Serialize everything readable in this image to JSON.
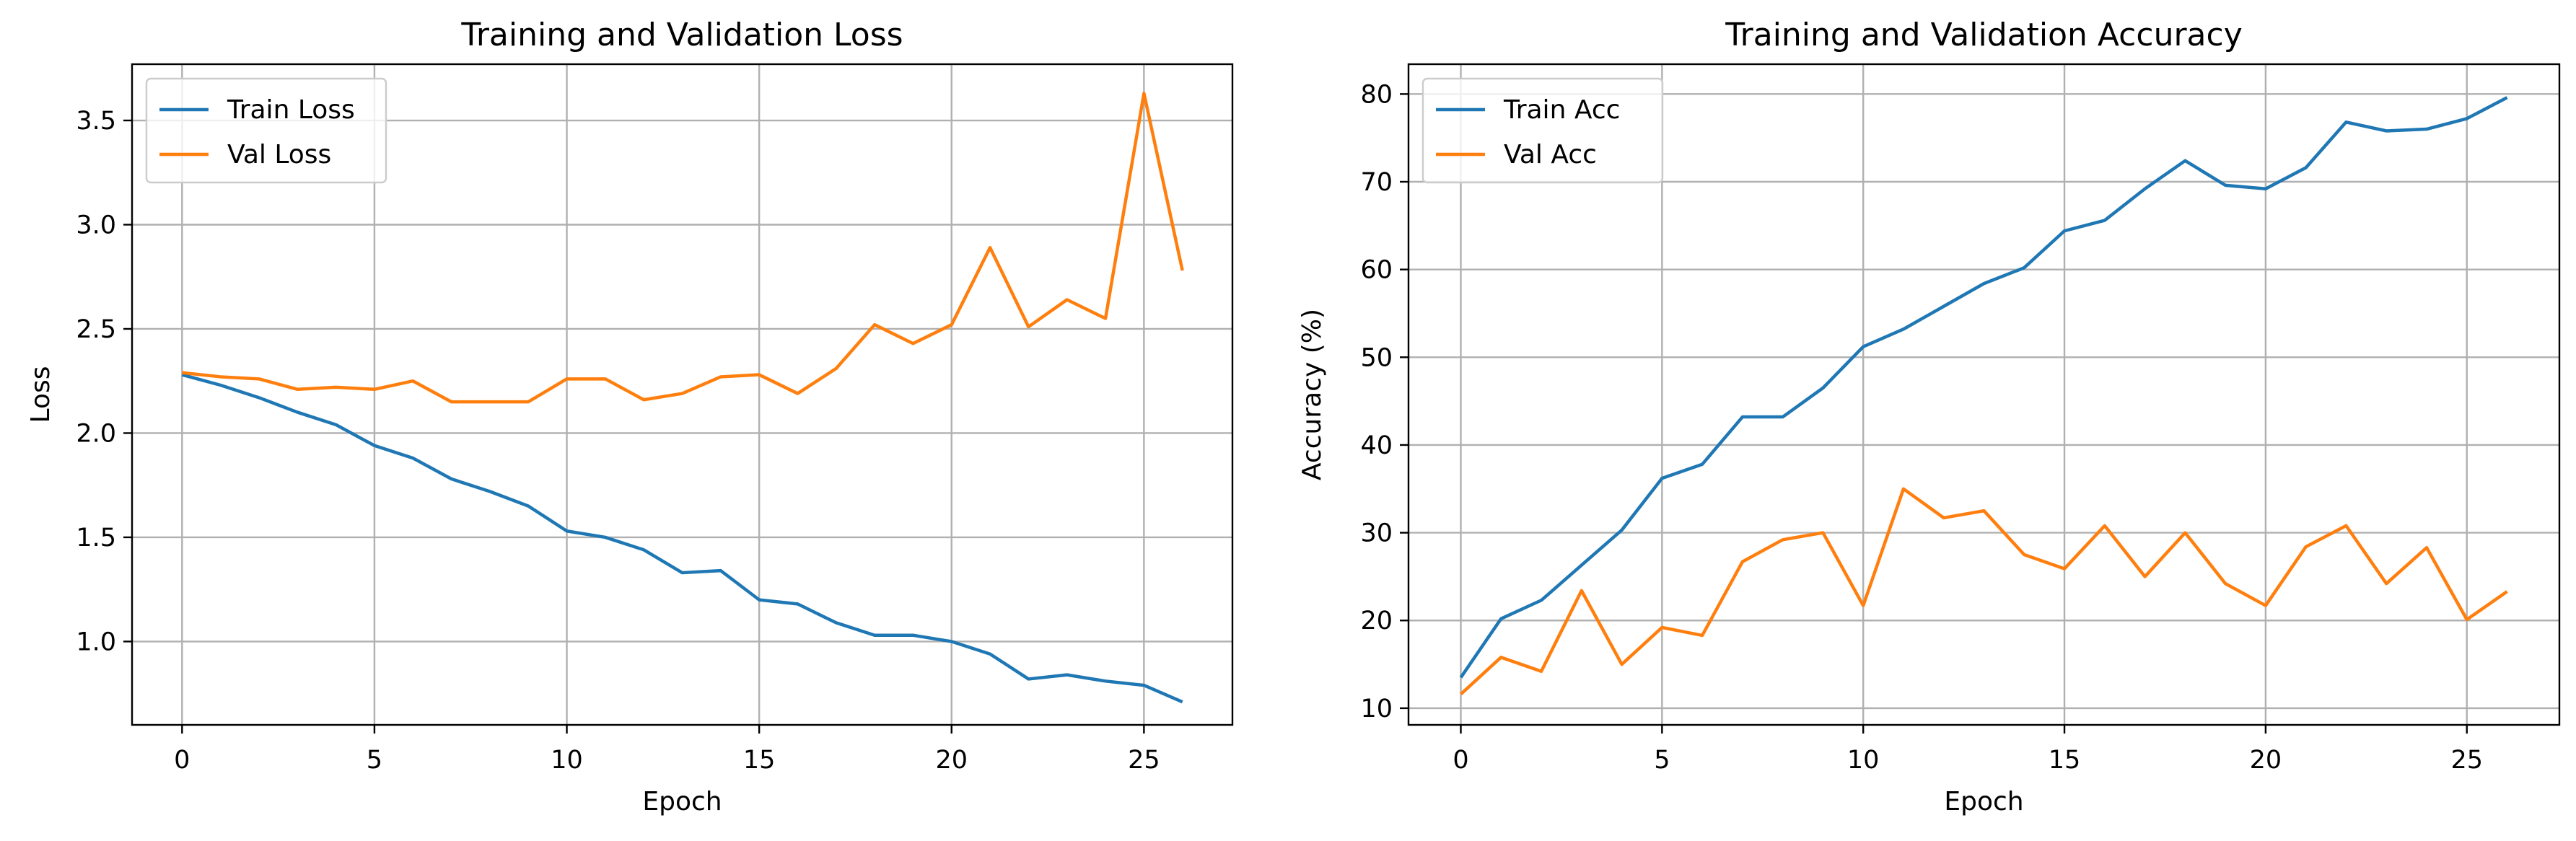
{
  "chart_data": [
    {
      "type": "line",
      "title": "Training and Validation Loss",
      "xlabel": "Epoch",
      "ylabel": "Loss",
      "xlim": [
        -1.3,
        27.3
      ],
      "ylim": [
        0.6,
        3.77
      ],
      "xticks": [
        0,
        5,
        10,
        15,
        20,
        25
      ],
      "yticks": [
        1.0,
        1.5,
        2.0,
        2.5,
        3.0,
        3.5
      ],
      "grid": true,
      "legend": "upper left",
      "x": [
        0,
        1,
        2,
        3,
        4,
        5,
        6,
        7,
        8,
        9,
        10,
        11,
        12,
        13,
        14,
        15,
        16,
        17,
        18,
        19,
        20,
        21,
        22,
        23,
        24,
        25,
        26
      ],
      "series": [
        {
          "name": "Train Loss",
          "color": "#1f77b4",
          "values": [
            2.28,
            2.23,
            2.17,
            2.1,
            2.04,
            1.94,
            1.88,
            1.78,
            1.72,
            1.65,
            1.53,
            1.5,
            1.44,
            1.33,
            1.34,
            1.2,
            1.18,
            1.09,
            1.03,
            1.03,
            1.0,
            0.94,
            0.82,
            0.84,
            0.81,
            0.79,
            0.71
          ]
        },
        {
          "name": "Val Loss",
          "color": "#ff7f0e",
          "values": [
            2.29,
            2.27,
            2.26,
            2.21,
            2.22,
            2.21,
            2.25,
            2.15,
            2.15,
            2.15,
            2.26,
            2.26,
            2.16,
            2.19,
            2.27,
            2.28,
            2.19,
            2.31,
            2.52,
            2.43,
            2.52,
            2.89,
            2.51,
            2.64,
            2.55,
            3.63,
            2.78
          ]
        }
      ]
    },
    {
      "type": "line",
      "title": "Training and Validation Accuracy",
      "xlabel": "Epoch",
      "ylabel": "Accuracy (%)",
      "xlim": [
        -1.3,
        27.3
      ],
      "ylim": [
        8.1,
        83.4
      ],
      "xticks": [
        0,
        5,
        10,
        15,
        20,
        25
      ],
      "yticks": [
        10,
        20,
        30,
        40,
        50,
        60,
        70,
        80
      ],
      "grid": true,
      "legend": "upper left",
      "x": [
        0,
        1,
        2,
        3,
        4,
        5,
        6,
        7,
        8,
        9,
        10,
        11,
        12,
        13,
        14,
        15,
        16,
        17,
        18,
        19,
        20,
        21,
        22,
        23,
        24,
        25,
        26
      ],
      "series": [
        {
          "name": "Train Acc",
          "color": "#1f77b4",
          "values": [
            13.5,
            20.2,
            22.3,
            26.3,
            30.3,
            36.2,
            37.8,
            43.2,
            43.2,
            46.5,
            51.2,
            53.2,
            55.8,
            58.4,
            60.2,
            64.4,
            65.6,
            69.2,
            72.4,
            69.6,
            69.2,
            71.6,
            76.8,
            75.8,
            76.0,
            77.2,
            79.6
          ]
        },
        {
          "name": "Val Acc",
          "color": "#ff7f0e",
          "values": [
            11.6,
            15.8,
            14.2,
            23.4,
            15.0,
            19.2,
            18.3,
            26.7,
            29.2,
            30.0,
            21.7,
            35.0,
            31.7,
            32.5,
            27.5,
            25.9,
            30.8,
            25.0,
            30.0,
            24.2,
            21.7,
            28.4,
            30.8,
            24.2,
            28.3,
            20.1,
            23.3
          ]
        }
      ]
    }
  ]
}
